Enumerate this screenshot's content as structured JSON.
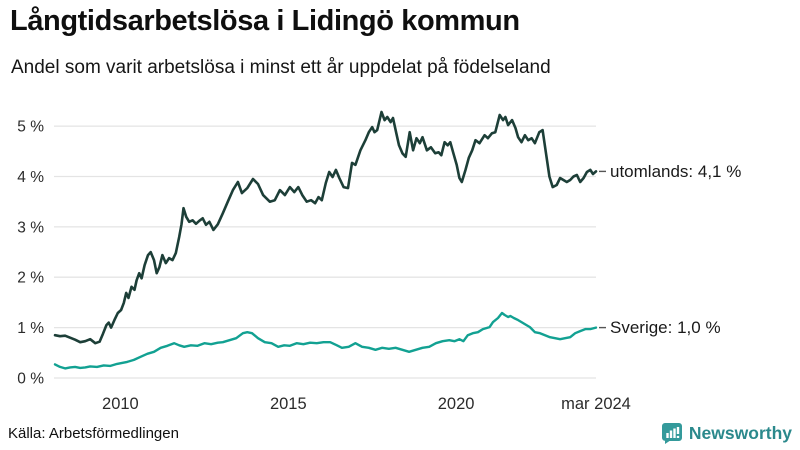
{
  "header": {
    "title": "Långtidsarbetslösa i Lidingö kommun",
    "subtitle": "Andel som varit arbetslösa i minst ett år uppdelat på födelseland"
  },
  "footer": {
    "source": "Källa: Arbetsförmedlingen",
    "brand": "Newsworthy",
    "brand_icon": "newsworthy-bubble-barchart-icon"
  },
  "colors": {
    "series_utomlands": "#1d3f38",
    "series_sverige": "#12a192",
    "grid": "#e4e4e4",
    "axis_text": "#2b2b2b",
    "label_text": "#1a1a1a",
    "label_dash": "#555555",
    "brand_teal": "#2b898c",
    "brand_icon_fill": "#349a9b",
    "background": "#ffffff"
  },
  "chart_data": {
    "type": "line",
    "title": "Långtidsarbetslösa i Lidingö kommun",
    "subtitle": "Andel som varit arbetslösa i minst ett år uppdelat på födelseland",
    "xlabel": "",
    "ylabel": "",
    "grid": true,
    "legend_position": "end-of-line-labels",
    "xlim": [
      2008.02,
      2024.17
    ],
    "ylim": [
      0,
      5.28
    ],
    "y_ticks": [
      {
        "value": 0,
        "label": "0 %"
      },
      {
        "value": 1,
        "label": "1 %"
      },
      {
        "value": 2,
        "label": "2 %"
      },
      {
        "value": 3,
        "label": "3 %"
      },
      {
        "value": 4,
        "label": "4 %"
      },
      {
        "value": 5,
        "label": "5 %"
      }
    ],
    "x_ticks": [
      {
        "value": 2010,
        "label": "2010"
      },
      {
        "value": 2015,
        "label": "2015"
      },
      {
        "value": 2020,
        "label": "2020"
      },
      {
        "value": 2024.17,
        "label": "mar 2024"
      }
    ],
    "series": [
      {
        "name": "utomlands",
        "color": "#1d3f38",
        "width": 2.6,
        "end_label": "utomlands: 4,1 %",
        "final_value": 4.1,
        "points": [
          [
            2008.05,
            0.85
          ],
          [
            2008.2,
            0.83
          ],
          [
            2008.35,
            0.84
          ],
          [
            2008.5,
            0.8
          ],
          [
            2008.65,
            0.76
          ],
          [
            2008.8,
            0.71
          ],
          [
            2008.95,
            0.73
          ],
          [
            2009.1,
            0.77
          ],
          [
            2009.25,
            0.69
          ],
          [
            2009.38,
            0.72
          ],
          [
            2009.48,
            0.88
          ],
          [
            2009.58,
            1.05
          ],
          [
            2009.65,
            1.1
          ],
          [
            2009.72,
            1.0
          ],
          [
            2009.82,
            1.15
          ],
          [
            2009.92,
            1.29
          ],
          [
            2010.02,
            1.35
          ],
          [
            2010.1,
            1.49
          ],
          [
            2010.17,
            1.69
          ],
          [
            2010.24,
            1.59
          ],
          [
            2010.33,
            1.81
          ],
          [
            2010.42,
            1.75
          ],
          [
            2010.48,
            1.94
          ],
          [
            2010.56,
            2.08
          ],
          [
            2010.63,
            1.98
          ],
          [
            2010.72,
            2.24
          ],
          [
            2010.82,
            2.44
          ],
          [
            2010.9,
            2.5
          ],
          [
            2011.0,
            2.34
          ],
          [
            2011.08,
            2.08
          ],
          [
            2011.16,
            2.2
          ],
          [
            2011.25,
            2.44
          ],
          [
            2011.35,
            2.28
          ],
          [
            2011.45,
            2.38
          ],
          [
            2011.55,
            2.34
          ],
          [
            2011.65,
            2.48
          ],
          [
            2011.75,
            2.8
          ],
          [
            2011.82,
            3.05
          ],
          [
            2011.88,
            3.37
          ],
          [
            2011.96,
            3.2
          ],
          [
            2012.05,
            3.1
          ],
          [
            2012.15,
            3.13
          ],
          [
            2012.25,
            3.06
          ],
          [
            2012.35,
            3.12
          ],
          [
            2012.45,
            3.17
          ],
          [
            2012.55,
            3.04
          ],
          [
            2012.65,
            3.1
          ],
          [
            2012.77,
            2.94
          ],
          [
            2012.9,
            3.05
          ],
          [
            2013.05,
            3.27
          ],
          [
            2013.2,
            3.5
          ],
          [
            2013.35,
            3.73
          ],
          [
            2013.5,
            3.89
          ],
          [
            2013.62,
            3.67
          ],
          [
            2013.78,
            3.77
          ],
          [
            2013.95,
            3.95
          ],
          [
            2014.1,
            3.85
          ],
          [
            2014.25,
            3.63
          ],
          [
            2014.45,
            3.5
          ],
          [
            2014.6,
            3.53
          ],
          [
            2014.75,
            3.73
          ],
          [
            2014.9,
            3.63
          ],
          [
            2015.05,
            3.79
          ],
          [
            2015.18,
            3.69
          ],
          [
            2015.3,
            3.79
          ],
          [
            2015.42,
            3.63
          ],
          [
            2015.55,
            3.5
          ],
          [
            2015.68,
            3.53
          ],
          [
            2015.8,
            3.47
          ],
          [
            2015.9,
            3.59
          ],
          [
            2016.0,
            3.53
          ],
          [
            2016.12,
            3.87
          ],
          [
            2016.22,
            4.09
          ],
          [
            2016.32,
            3.99
          ],
          [
            2016.42,
            4.13
          ],
          [
            2016.52,
            3.97
          ],
          [
            2016.65,
            3.79
          ],
          [
            2016.78,
            3.77
          ],
          [
            2016.9,
            4.27
          ],
          [
            2017.0,
            4.23
          ],
          [
            2017.15,
            4.52
          ],
          [
            2017.3,
            4.72
          ],
          [
            2017.4,
            4.88
          ],
          [
            2017.5,
            4.98
          ],
          [
            2017.57,
            4.88
          ],
          [
            2017.65,
            4.92
          ],
          [
            2017.78,
            5.28
          ],
          [
            2017.87,
            5.12
          ],
          [
            2017.95,
            5.18
          ],
          [
            2018.05,
            5.08
          ],
          [
            2018.12,
            5.16
          ],
          [
            2018.22,
            4.86
          ],
          [
            2018.3,
            4.62
          ],
          [
            2018.4,
            4.46
          ],
          [
            2018.5,
            4.39
          ],
          [
            2018.62,
            4.88
          ],
          [
            2018.72,
            4.52
          ],
          [
            2018.82,
            4.76
          ],
          [
            2018.92,
            4.66
          ],
          [
            2019.0,
            4.78
          ],
          [
            2019.13,
            4.52
          ],
          [
            2019.25,
            4.58
          ],
          [
            2019.38,
            4.46
          ],
          [
            2019.48,
            4.48
          ],
          [
            2019.56,
            4.42
          ],
          [
            2019.66,
            4.68
          ],
          [
            2019.75,
            4.62
          ],
          [
            2019.83,
            4.68
          ],
          [
            2019.92,
            4.46
          ],
          [
            2020.02,
            4.23
          ],
          [
            2020.1,
            3.97
          ],
          [
            2020.17,
            3.89
          ],
          [
            2020.28,
            4.13
          ],
          [
            2020.38,
            4.37
          ],
          [
            2020.48,
            4.52
          ],
          [
            2020.58,
            4.72
          ],
          [
            2020.7,
            4.66
          ],
          [
            2020.85,
            4.82
          ],
          [
            2020.95,
            4.76
          ],
          [
            2021.07,
            4.86
          ],
          [
            2021.17,
            4.88
          ],
          [
            2021.3,
            5.22
          ],
          [
            2021.4,
            5.12
          ],
          [
            2021.47,
            5.18
          ],
          [
            2021.55,
            5.02
          ],
          [
            2021.67,
            5.12
          ],
          [
            2021.77,
            4.96
          ],
          [
            2021.85,
            4.78
          ],
          [
            2021.95,
            4.68
          ],
          [
            2022.05,
            4.82
          ],
          [
            2022.15,
            4.72
          ],
          [
            2022.25,
            4.76
          ],
          [
            2022.35,
            4.66
          ],
          [
            2022.48,
            4.88
          ],
          [
            2022.58,
            4.92
          ],
          [
            2022.68,
            4.46
          ],
          [
            2022.78,
            4.0
          ],
          [
            2022.88,
            3.79
          ],
          [
            2023.0,
            3.83
          ],
          [
            2023.1,
            3.97
          ],
          [
            2023.2,
            3.93
          ],
          [
            2023.3,
            3.89
          ],
          [
            2023.4,
            3.93
          ],
          [
            2023.5,
            4.0
          ],
          [
            2023.6,
            4.03
          ],
          [
            2023.7,
            3.89
          ],
          [
            2023.8,
            3.97
          ],
          [
            2023.9,
            4.09
          ],
          [
            2024.0,
            4.13
          ],
          [
            2024.08,
            4.05
          ],
          [
            2024.17,
            4.1
          ]
        ]
      },
      {
        "name": "Sverige",
        "color": "#12a192",
        "width": 2.4,
        "end_label": "Sverige: 1,0 %",
        "final_value": 1.0,
        "points": [
          [
            2008.05,
            0.27
          ],
          [
            2008.2,
            0.22
          ],
          [
            2008.35,
            0.19
          ],
          [
            2008.5,
            0.21
          ],
          [
            2008.65,
            0.22
          ],
          [
            2008.8,
            0.2
          ],
          [
            2008.95,
            0.21
          ],
          [
            2009.1,
            0.23
          ],
          [
            2009.3,
            0.22
          ],
          [
            2009.5,
            0.25
          ],
          [
            2009.7,
            0.24
          ],
          [
            2009.9,
            0.28
          ],
          [
            2010.05,
            0.3
          ],
          [
            2010.2,
            0.32
          ],
          [
            2010.4,
            0.36
          ],
          [
            2010.6,
            0.42
          ],
          [
            2010.8,
            0.48
          ],
          [
            2011.0,
            0.52
          ],
          [
            2011.2,
            0.6
          ],
          [
            2011.4,
            0.64
          ],
          [
            2011.6,
            0.69
          ],
          [
            2011.75,
            0.65
          ],
          [
            2011.9,
            0.62
          ],
          [
            2012.1,
            0.65
          ],
          [
            2012.3,
            0.64
          ],
          [
            2012.5,
            0.69
          ],
          [
            2012.7,
            0.67
          ],
          [
            2012.9,
            0.7
          ],
          [
            2013.05,
            0.71
          ],
          [
            2013.25,
            0.75
          ],
          [
            2013.45,
            0.79
          ],
          [
            2013.65,
            0.89
          ],
          [
            2013.78,
            0.91
          ],
          [
            2013.92,
            0.89
          ],
          [
            2014.1,
            0.79
          ],
          [
            2014.3,
            0.71
          ],
          [
            2014.5,
            0.69
          ],
          [
            2014.7,
            0.62
          ],
          [
            2014.88,
            0.65
          ],
          [
            2015.05,
            0.64
          ],
          [
            2015.25,
            0.69
          ],
          [
            2015.45,
            0.67
          ],
          [
            2015.65,
            0.7
          ],
          [
            2015.85,
            0.69
          ],
          [
            2016.05,
            0.71
          ],
          [
            2016.25,
            0.71
          ],
          [
            2016.45,
            0.65
          ],
          [
            2016.6,
            0.6
          ],
          [
            2016.8,
            0.62
          ],
          [
            2017.0,
            0.69
          ],
          [
            2017.2,
            0.62
          ],
          [
            2017.4,
            0.6
          ],
          [
            2017.6,
            0.56
          ],
          [
            2017.8,
            0.6
          ],
          [
            2018.0,
            0.58
          ],
          [
            2018.2,
            0.6
          ],
          [
            2018.4,
            0.56
          ],
          [
            2018.6,
            0.52
          ],
          [
            2018.8,
            0.56
          ],
          [
            2019.0,
            0.6
          ],
          [
            2019.2,
            0.62
          ],
          [
            2019.4,
            0.69
          ],
          [
            2019.6,
            0.73
          ],
          [
            2019.8,
            0.75
          ],
          [
            2019.95,
            0.73
          ],
          [
            2020.1,
            0.77
          ],
          [
            2020.22,
            0.73
          ],
          [
            2020.35,
            0.85
          ],
          [
            2020.5,
            0.89
          ],
          [
            2020.65,
            0.91
          ],
          [
            2020.8,
            0.97
          ],
          [
            2021.0,
            1.01
          ],
          [
            2021.1,
            1.11
          ],
          [
            2021.25,
            1.19
          ],
          [
            2021.37,
            1.29
          ],
          [
            2021.45,
            1.25
          ],
          [
            2021.55,
            1.21
          ],
          [
            2021.62,
            1.23
          ],
          [
            2021.72,
            1.19
          ],
          [
            2021.85,
            1.15
          ],
          [
            2021.95,
            1.11
          ],
          [
            2022.1,
            1.05
          ],
          [
            2022.2,
            1.01
          ],
          [
            2022.35,
            0.91
          ],
          [
            2022.5,
            0.89
          ],
          [
            2022.65,
            0.85
          ],
          [
            2022.8,
            0.81
          ],
          [
            2022.95,
            0.79
          ],
          [
            2023.1,
            0.77
          ],
          [
            2023.25,
            0.79
          ],
          [
            2023.4,
            0.81
          ],
          [
            2023.55,
            0.89
          ],
          [
            2023.7,
            0.93
          ],
          [
            2023.85,
            0.97
          ],
          [
            2024.0,
            0.97
          ],
          [
            2024.17,
            1.0
          ]
        ]
      }
    ]
  }
}
